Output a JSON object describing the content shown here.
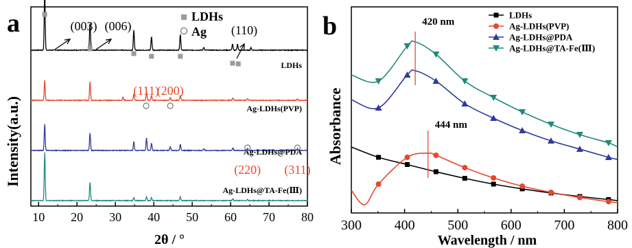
{
  "panels": [
    {
      "id": "a",
      "letter": "a",
      "chart_data": {
        "type": "line",
        "title": "",
        "xlabel": "2θ / °",
        "ylabel": "Intensity(a.u.)",
        "xlim": [
          8,
          80
        ],
        "xticks": [
          10,
          20,
          30,
          40,
          50,
          60,
          70,
          80
        ],
        "grid": false,
        "series": [
          {
            "name": "LDHs",
            "color": "#000000",
            "offset": 3.0,
            "peaks": [
              {
                "x": 11.6,
                "y": 0.95
              },
              {
                "x": 23.4,
                "y": 0.45
              },
              {
                "x": 34.8,
                "y": 0.32
              },
              {
                "x": 39.4,
                "y": 0.22
              },
              {
                "x": 46.9,
                "y": 0.26
              },
              {
                "x": 53.0,
                "y": 0.05
              },
              {
                "x": 60.5,
                "y": 0.1
              },
              {
                "x": 61.8,
                "y": 0.1
              },
              {
                "x": 65.3,
                "y": 0.04
              }
            ]
          },
          {
            "name": "Ag-LDHs(PVP)",
            "color": "#e8472f",
            "offset": 2.0,
            "peaks": [
              {
                "x": 11.6,
                "y": 0.32
              },
              {
                "x": 23.4,
                "y": 0.3
              },
              {
                "x": 32.0,
                "y": 0.05
              },
              {
                "x": 34.8,
                "y": 0.1
              },
              {
                "x": 38.1,
                "y": 0.14
              },
              {
                "x": 39.4,
                "y": 0.08
              },
              {
                "x": 44.3,
                "y": 0.05
              },
              {
                "x": 46.9,
                "y": 0.08
              },
              {
                "x": 60.6,
                "y": 0.04
              },
              {
                "x": 64.4,
                "y": 0.03
              },
              {
                "x": 77.4,
                "y": 0.02
              }
            ]
          },
          {
            "name": "Ag-LDHs@PDA",
            "color": "#2e3a9c",
            "offset": 1.0,
            "peaks": [
              {
                "x": 11.6,
                "y": 0.42
              },
              {
                "x": 23.4,
                "y": 0.28
              },
              {
                "x": 34.8,
                "y": 0.14
              },
              {
                "x": 38.1,
                "y": 0.2
              },
              {
                "x": 39.4,
                "y": 0.12
              },
              {
                "x": 44.3,
                "y": 0.06
              },
              {
                "x": 46.9,
                "y": 0.1
              },
              {
                "x": 53.0,
                "y": 0.03
              },
              {
                "x": 60.6,
                "y": 0.04
              },
              {
                "x": 64.4,
                "y": 0.03
              },
              {
                "x": 77.4,
                "y": 0.03
              }
            ]
          },
          {
            "name": "Ag-LDHs@TA-Fe(Ⅲ)",
            "color": "#1f8a7a",
            "offset": 0.0,
            "peaks": [
              {
                "x": 11.6,
                "y": 0.78
              },
              {
                "x": 23.4,
                "y": 0.3
              },
              {
                "x": 34.8,
                "y": 0.05
              },
              {
                "x": 38.1,
                "y": 0.06
              },
              {
                "x": 39.4,
                "y": 0.05
              },
              {
                "x": 46.9,
                "y": 0.06
              },
              {
                "x": 60.6,
                "y": 0.03
              },
              {
                "x": 64.4,
                "y": 0.02
              }
            ]
          }
        ],
        "annotations": {
          "ldh_planes": [
            {
              "text": "(003)",
              "x": 15.5
            },
            {
              "text": "(006)",
              "x": 26.5
            },
            {
              "text": "(110)",
              "x": 64.5
            }
          ],
          "ag_planes_top": [
            {
              "text": "(111)",
              "x": 38.0
            },
            {
              "text": "(200)",
              "x": 44.3
            }
          ],
          "ag_planes_bottom": [
            {
              "text": "(220)",
              "x": 64.4
            },
            {
              "text": "(311)",
              "x": 77.4
            }
          ],
          "ldh_square_markers_x": [
            11.6,
            23.4,
            34.8,
            39.4,
            46.9,
            60.5,
            62.0
          ],
          "ag_circle_markers": [
            {
              "x": 38.0,
              "row": "pvp"
            },
            {
              "x": 44.3,
              "row": "pvp"
            },
            {
              "x": 64.4,
              "row": "pda"
            },
            {
              "x": 77.4,
              "row": "pda"
            }
          ],
          "legend": [
            {
              "symbol": "square",
              "text": "LDHs"
            },
            {
              "symbol": "circle",
              "text": "Ag"
            }
          ]
        }
      }
    },
    {
      "id": "b",
      "letter": "b",
      "chart_data": {
        "type": "line",
        "title": "",
        "xlabel": "Wavelength / nm",
        "ylabel": "Absorbance",
        "xlim": [
          300,
          800
        ],
        "ylim": [
          0,
          1
        ],
        "xticks": [
          300,
          400,
          500,
          600,
          700,
          800
        ],
        "grid": false,
        "legend_position": "top-right",
        "series": [
          {
            "name": "LDHs",
            "color": "#000000",
            "marker": "square",
            "x": [
              300,
              351,
              405,
              459,
              513,
              567,
              621,
              675,
              729,
              783,
              800
            ],
            "y": [
              0.32,
              0.27,
              0.235,
              0.2,
              0.168,
              0.14,
              0.117,
              0.097,
              0.08,
              0.065,
              0.06
            ]
          },
          {
            "name": "Ag-LDHs(PVP)",
            "color": "#e8472f",
            "marker": "circle",
            "x": [
              300,
              325,
              351,
              405,
              444,
              459,
              513,
              567,
              621,
              675,
              729,
              783,
              800
            ],
            "y": [
              0.11,
              0.04,
              0.14,
              0.27,
              0.29,
              0.28,
              0.22,
              0.17,
              0.13,
              0.1,
              0.075,
              0.055,
              0.05
            ]
          },
          {
            "name": "Ag-LDHs@PDA",
            "color": "#2e3a9c",
            "marker": "triangle-up",
            "x": [
              300,
              351,
              405,
              420,
              459,
              513,
              567,
              621,
              675,
              729,
              783,
              800
            ],
            "y": [
              0.55,
              0.51,
              0.67,
              0.69,
              0.64,
              0.53,
              0.46,
              0.4,
              0.35,
              0.31,
              0.27,
              0.26
            ]
          },
          {
            "name": "Ag-LDHs@TA-Fe(Ⅲ)",
            "color": "#1f8a7a",
            "marker": "triangle-down",
            "x": [
              300,
              351,
              405,
              420,
              459,
              513,
              567,
              621,
              675,
              729,
              783,
              800
            ],
            "y": [
              0.67,
              0.64,
              0.81,
              0.83,
              0.77,
              0.64,
              0.56,
              0.49,
              0.43,
              0.38,
              0.34,
              0.32
            ]
          }
        ],
        "annotations": [
          {
            "text": "420 nm",
            "x": 420,
            "line_y": [
              0.62,
              0.88
            ]
          },
          {
            "text": "444 nm",
            "x": 444,
            "line_y": [
              0.17,
              0.4
            ]
          }
        ]
      }
    }
  ]
}
